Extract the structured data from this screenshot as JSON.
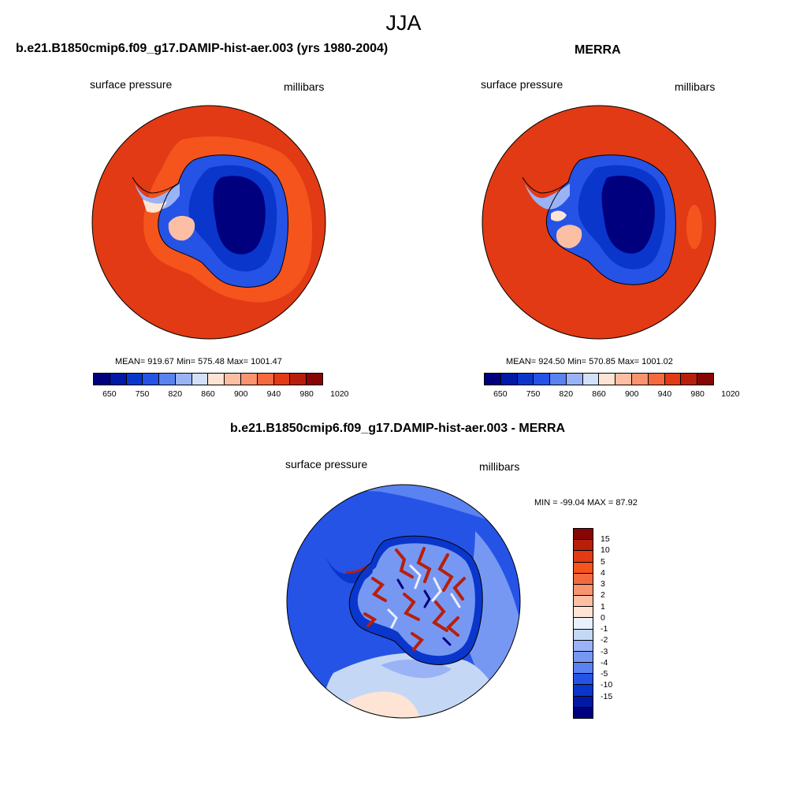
{
  "figure": {
    "title": "JJA"
  },
  "panels": {
    "model": {
      "title": "b.e21.B1850cmip6.f09_g17.DAMIP-hist-aer.003 (yrs 1980-2004)",
      "variable": "surface pressure",
      "units": "millibars",
      "stats": "MEAN= 919.67  Min= 575.48  Max= 1001.47"
    },
    "obs": {
      "title": "MERRA",
      "variable": "surface pressure",
      "units": "millibars",
      "stats": "MEAN= 924.50  Min= 570.85  Max= 1001.02"
    },
    "diff": {
      "title": "b.e21.B1850cmip6.f09_g17.DAMIP-hist-aer.003 - MERRA",
      "variable": "surface pressure",
      "units": "millibars",
      "stats": "MIN = -99.04 MAX =  87.92"
    }
  },
  "colorbars": {
    "abs": {
      "colors": [
        "#00007f",
        "#0019a6",
        "#0a36cc",
        "#2553e6",
        "#5a82f0",
        "#9ab3f6",
        "#d2e1f8",
        "#fde4d4",
        "#fcbfa4",
        "#fa9370",
        "#f5693f",
        "#e23a14",
        "#b81f0a",
        "#880505"
      ],
      "tick_labels": [
        "650",
        "750",
        "820",
        "860",
        "900",
        "940",
        "980",
        "1020"
      ]
    },
    "diff": {
      "colors": [
        "#880505",
        "#b81f0a",
        "#e23a14",
        "#f5541d",
        "#f5693f",
        "#fa9370",
        "#fcbfa4",
        "#fde4d4",
        "#e8f0fb",
        "#c4d8f6",
        "#9ab3f6",
        "#7798f2",
        "#5a82f0",
        "#2553e6",
        "#0a36cc",
        "#0019a6",
        "#00007f"
      ],
      "tick_labels": [
        "15",
        "10",
        "5",
        "4",
        "3",
        "2",
        "1",
        "0",
        "-1",
        "-2",
        "-3",
        "-4",
        "-5",
        "-10",
        "-15"
      ]
    }
  },
  "map_colors": {
    "ocean": "#e23a14",
    "ocean_high": "#f5541d",
    "ice_high": "#00007f",
    "diff_ocean": "#2553e6"
  }
}
